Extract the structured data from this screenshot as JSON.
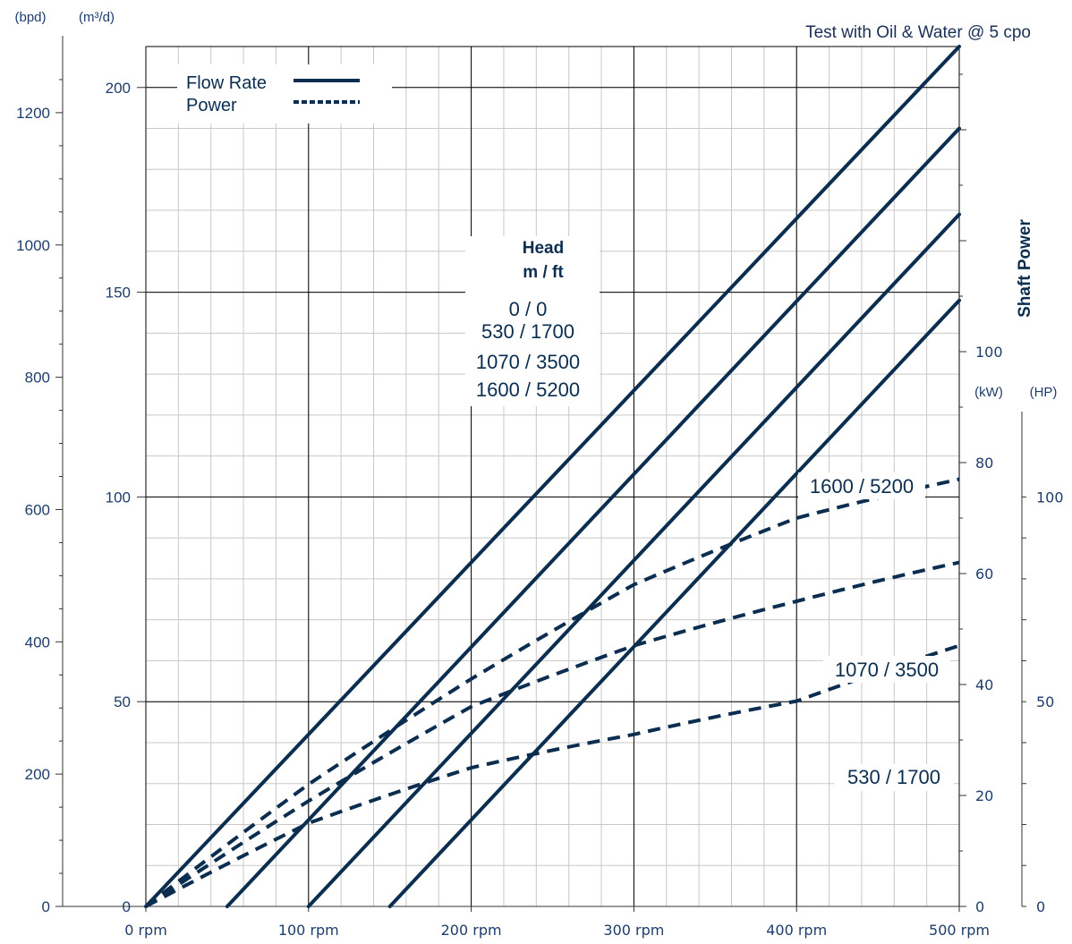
{
  "chart_data": {
    "type": "line",
    "title": "Test with Oil & Water @ 5 cpo",
    "x_axis": {
      "unit_label": "rpm",
      "range": [
        0,
        500
      ],
      "ticks": [
        "0 rpm",
        "100 rpm",
        "200 rpm",
        "300 rpm",
        "400 rpm",
        "500 rpm"
      ]
    },
    "y_axes": {
      "bpd": {
        "unit_label": "(bpd)",
        "range": [
          0,
          1300
        ],
        "ticks": [
          "0",
          "200",
          "400",
          "600",
          "800",
          "1000",
          "1200"
        ]
      },
      "m3d": {
        "unit_label": "(m³/d)",
        "range": [
          0,
          210
        ],
        "ticks": [
          "0",
          "50",
          "100",
          "150",
          "200"
        ]
      },
      "kw": {
        "unit_label": "(kW)",
        "range": [
          0,
          155
        ],
        "ticks": [
          "0",
          "20",
          "40",
          "60",
          "80",
          "100"
        ]
      },
      "hp": {
        "unit_label": "(HP)",
        "range": [
          0,
          210
        ],
        "ticks": [
          "0",
          "50",
          "100"
        ]
      },
      "power_title": "Shaft Power"
    },
    "legend": {
      "position": "top-left",
      "items": [
        {
          "label": "Flow Rate",
          "style": "solid"
        },
        {
          "label": "Power",
          "style": "dashed"
        }
      ]
    },
    "head_block": {
      "title_line1": "Head",
      "title_line2": "m / ft",
      "lines": [
        "0 / 0",
        "530 / 1700",
        "1070 / 3500",
        "1600 / 5200"
      ]
    },
    "power_labels": [
      "1600 / 5200",
      "1070 / 3500",
      "530 / 1700"
    ],
    "flow_series": [
      {
        "head": "0 / 0",
        "axis": "m3d",
        "points": [
          [
            0,
            0
          ],
          [
            500,
            210
          ]
        ]
      },
      {
        "head": "530 / 1700",
        "axis": "m3d",
        "points": [
          [
            50,
            0
          ],
          [
            500,
            190
          ]
        ]
      },
      {
        "head": "1070 / 3500",
        "axis": "m3d",
        "points": [
          [
            100,
            0
          ],
          [
            500,
            169
          ]
        ]
      },
      {
        "head": "1600 / 5200",
        "axis": "m3d",
        "points": [
          [
            150,
            0
          ],
          [
            500,
            148
          ]
        ]
      }
    ],
    "power_series": [
      {
        "head": "1600 / 5200",
        "axis": "kw",
        "points": [
          [
            0,
            0
          ],
          [
            100,
            22
          ],
          [
            200,
            41
          ],
          [
            300,
            58
          ],
          [
            400,
            70
          ],
          [
            500,
            77
          ]
        ]
      },
      {
        "head": "1070 / 3500",
        "axis": "kw",
        "points": [
          [
            0,
            0
          ],
          [
            100,
            19
          ],
          [
            200,
            36
          ],
          [
            300,
            47
          ],
          [
            400,
            55
          ],
          [
            500,
            62
          ]
        ]
      },
      {
        "head": "530 / 1700",
        "axis": "kw",
        "points": [
          [
            0,
            0
          ],
          [
            100,
            15
          ],
          [
            200,
            25
          ],
          [
            300,
            31
          ],
          [
            400,
            37
          ],
          [
            500,
            47
          ]
        ]
      }
    ],
    "grid": true,
    "colors": {
      "line": "#0b2d4f",
      "grid_major": "#000000",
      "grid_minor": "#c8c8c8",
      "text": "#1e3d6b"
    }
  }
}
